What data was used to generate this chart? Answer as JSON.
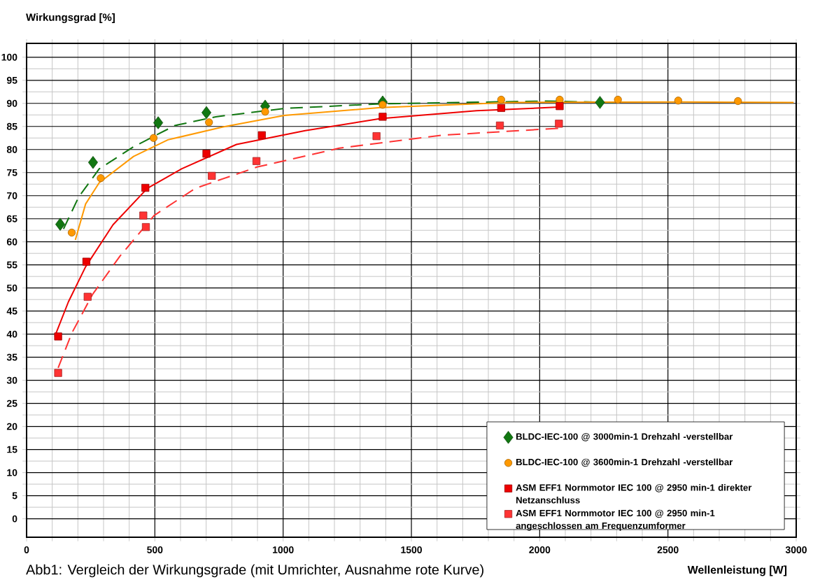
{
  "chart_data": {
    "type": "scatter",
    "ylabel": "Wirkungsgrad [%]",
    "xlabel": "Wellenleistung [W]",
    "annotations": [
      "Abb1: Vergleich der Wirkungsgrade (mit Umrichter, Ausnahme rote Kurve)"
    ],
    "xlim": [
      0,
      3000
    ],
    "xticks": [
      0,
      500,
      1000,
      1500,
      2000,
      2500,
      3000
    ],
    "ylim": [
      -4,
      103
    ],
    "yticks": [
      0,
      5,
      10,
      15,
      20,
      25,
      30,
      35,
      40,
      45,
      50,
      55,
      60,
      65,
      70,
      75,
      80,
      85,
      90,
      95,
      100
    ],
    "grid": true,
    "legend": "bottom right",
    "series": [
      {
        "name": "BLDC-IEC-100 @ 3000min-1 Drehzahl -verstellbar",
        "marker": "diamond",
        "color": "#117711",
        "x": [
          131,
          259,
          513,
          701,
          930,
          1388,
          2235
        ],
        "values": [
          63.8,
          77.2,
          85.8,
          88.0,
          89.4,
          90.3,
          90.2
        ]
      },
      {
        "name": "BLDC-IEC-100 @ 3600min-1 Drehzahl -verstellbar",
        "marker": "circle",
        "color": "#ff9900",
        "x": [
          176,
          289,
          495,
          711,
          930,
          1388,
          1850,
          2078,
          2305,
          2540,
          2773
        ],
        "values": [
          62.0,
          73.8,
          82.5,
          85.9,
          88.2,
          89.7,
          90.8,
          90.8,
          90.8,
          90.6,
          90.5
        ]
      },
      {
        "name": "ASM EFF1 Normmotor IEC 100 @ 2950 min-1 direkter Netzanschluss",
        "marker": "square",
        "color": "#ee0000",
        "x": [
          123,
          233,
          463,
          701,
          917,
          1388,
          1850,
          2078
        ],
        "values": [
          39.5,
          55.7,
          71.7,
          79.1,
          83.1,
          87.1,
          89.0,
          89.4
        ]
      },
      {
        "name": "ASM EFF1 Normmotor IEC 100 @ 2950 min-1 angeschlossen am Frequenzumformer",
        "marker": "square",
        "color": "#ff3333",
        "x": [
          123,
          238,
          455,
          465,
          722,
          896,
          1364,
          1845,
          2075
        ],
        "values": [
          31.6,
          48.1,
          65.7,
          63.2,
          74.3,
          77.5,
          82.9,
          85.2,
          85.6
        ]
      },
      {
        "type": "line",
        "line_style": "dashed",
        "color": "#117711",
        "x": [
          144,
          203,
          283,
          417,
          578,
          738,
          1005,
          1380,
          2021,
          2289
        ],
        "values": [
          62.8,
          69.7,
          75.8,
          80.6,
          85.2,
          87.1,
          88.9,
          89.9,
          90.5,
          90.2
        ]
      },
      {
        "type": "line",
        "line_style": "solid",
        "color": "#ff9900",
        "x": [
          190,
          230,
          283,
          417,
          551,
          765,
          1005,
          1380,
          1888,
          2556,
          2990
        ],
        "values": [
          60.4,
          68.2,
          72.8,
          78.5,
          82.1,
          84.9,
          87.4,
          89.1,
          90.2,
          90.3,
          90.2
        ]
      },
      {
        "type": "line",
        "line_style": "solid",
        "color": "#ee0000",
        "x": [
          110,
          163,
          230,
          337,
          471,
          604,
          818,
          1086,
          1380,
          1754,
          2078
        ],
        "values": [
          39.5,
          47.0,
          54.6,
          63.7,
          71.6,
          75.8,
          81.1,
          84.1,
          86.7,
          88.4,
          89.2
        ]
      },
      {
        "type": "line",
        "line_style": "dashed",
        "color": "#ff3333",
        "x": [
          123,
          176,
          257,
          364,
          497,
          658,
          898,
          1219,
          1620,
          2075
        ],
        "values": [
          32.7,
          40.2,
          48.6,
          56.9,
          65.7,
          71.6,
          76.2,
          80.3,
          83.1,
          84.6
        ]
      }
    ]
  }
}
